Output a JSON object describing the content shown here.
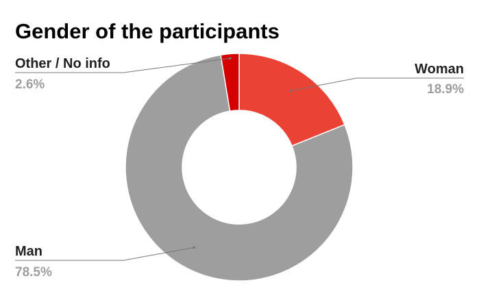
{
  "chart_data": {
    "type": "pie",
    "donut": true,
    "title": "Gender of the participants",
    "slices": [
      {
        "label": "Woman",
        "value": 18.9,
        "value_label": "18.9%",
        "color": "#ea4335"
      },
      {
        "label": "Man",
        "value": 78.5,
        "value_label": "78.5%",
        "color": "#9e9e9e"
      },
      {
        "label": "Other / No info",
        "value": 2.6,
        "value_label": "2.6%",
        "color": "#d50000"
      }
    ],
    "legend": "none",
    "label_style": "outside-with-leader-lines"
  }
}
